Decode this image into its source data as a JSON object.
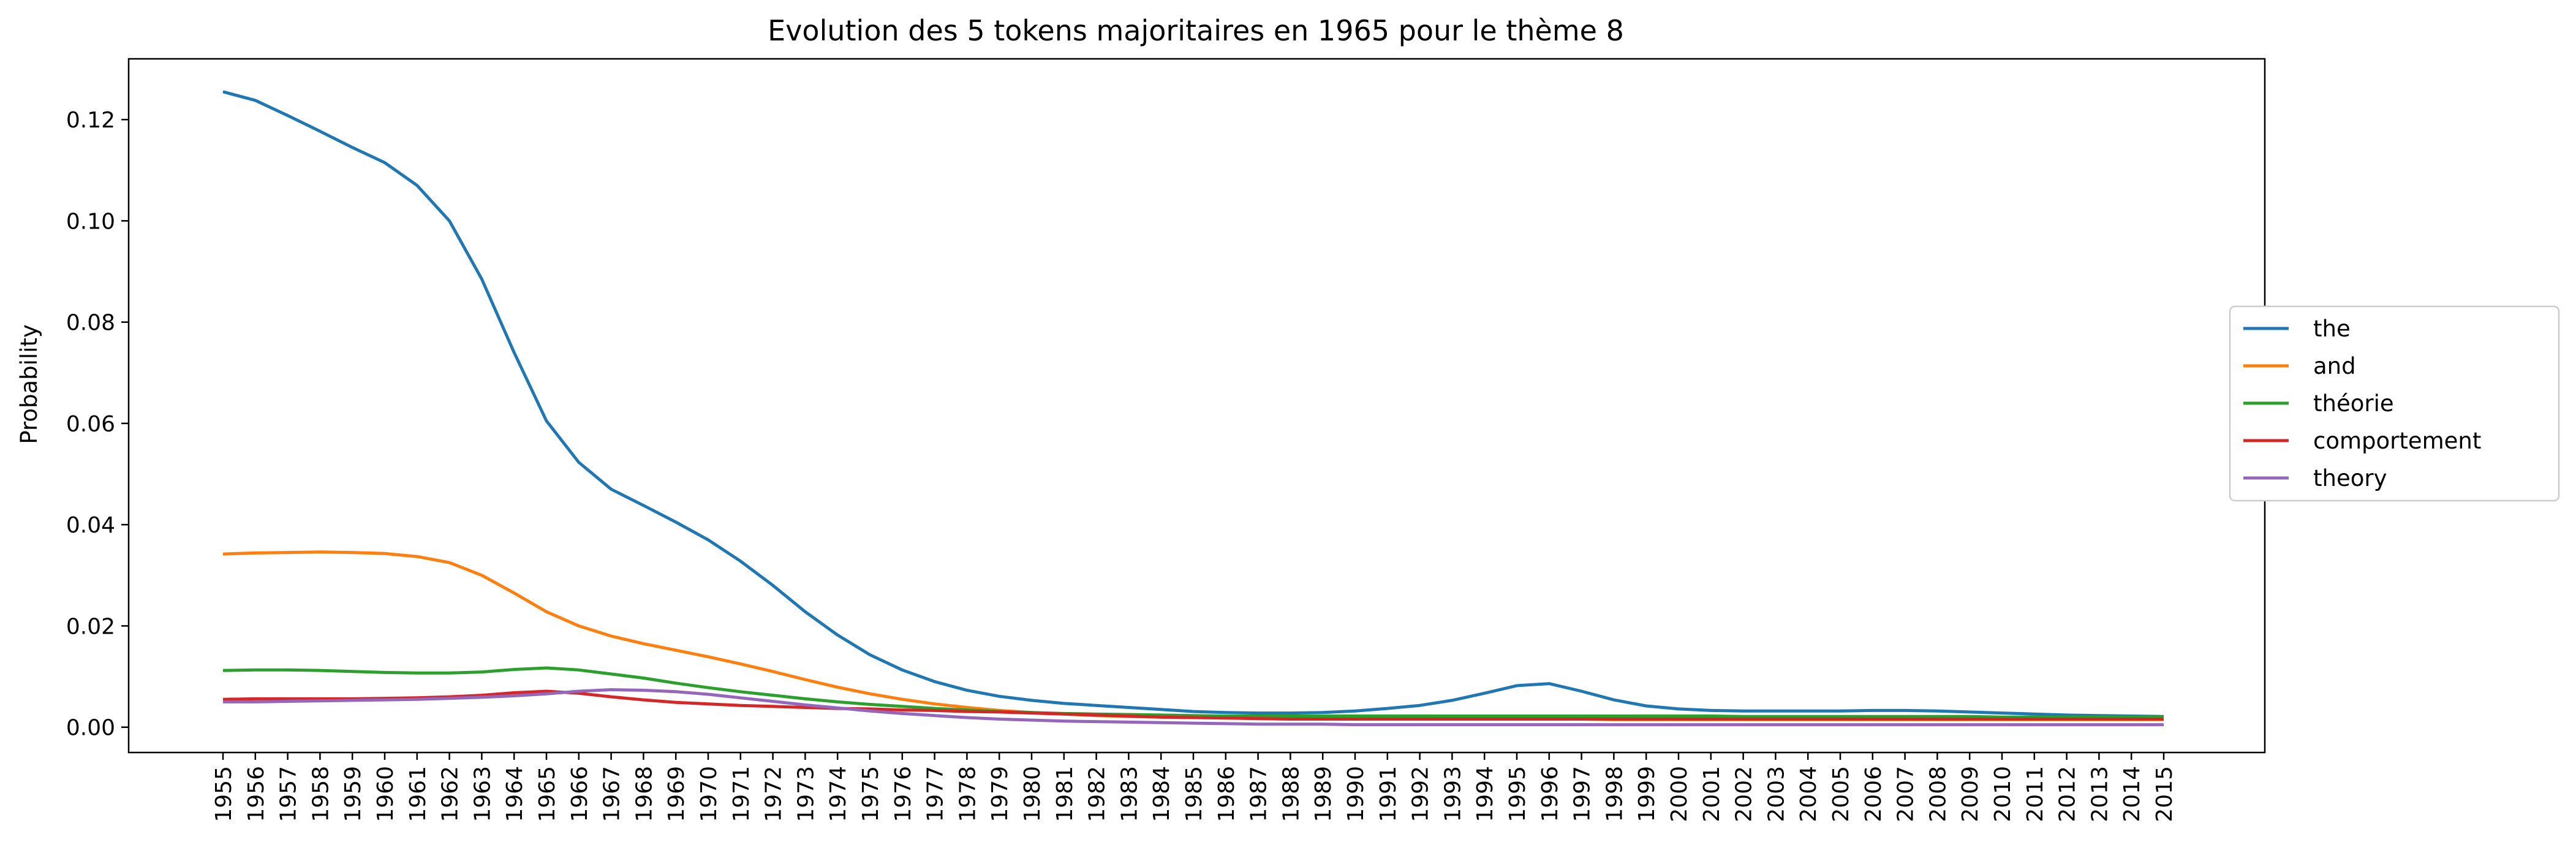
{
  "chart_data": {
    "type": "line",
    "title": "Evolution des 5 tokens majoritaires en 1965 pour le thème 8",
    "xlabel": "",
    "ylabel": "Probability",
    "ylim": [
      -0.005,
      0.132
    ],
    "yticks": [
      0.0,
      0.02,
      0.04,
      0.06,
      0.08,
      0.1,
      0.12
    ],
    "ytick_labels": [
      "0.00",
      "0.02",
      "0.04",
      "0.06",
      "0.08",
      "0.10",
      "0.12"
    ],
    "x": [
      1955,
      1956,
      1957,
      1958,
      1959,
      1960,
      1961,
      1962,
      1963,
      1964,
      1965,
      1966,
      1967,
      1968,
      1969,
      1970,
      1971,
      1972,
      1973,
      1974,
      1975,
      1976,
      1977,
      1978,
      1979,
      1980,
      1981,
      1982,
      1983,
      1984,
      1985,
      1986,
      1987,
      1988,
      1989,
      1990,
      1991,
      1992,
      1993,
      1994,
      1995,
      1996,
      1997,
      1998,
      1999,
      2000,
      2001,
      2002,
      2003,
      2004,
      2005,
      2006,
      2007,
      2008,
      2009,
      2010,
      2011,
      2012,
      2013,
      2014,
      2015
    ],
    "x_labels": [
      "1955",
      "1956",
      "1957",
      "1958",
      "1959",
      "1960",
      "1961",
      "1962",
      "1963",
      "1964",
      "1965",
      "1966",
      "1967",
      "1968",
      "1969",
      "1970",
      "1971",
      "1972",
      "1973",
      "1974",
      "1975",
      "1976",
      "1977",
      "1978",
      "1979",
      "1980",
      "1981",
      "1982",
      "1983",
      "1984",
      "1985",
      "1986",
      "1987",
      "1988",
      "1989",
      "1990",
      "1991",
      "1992",
      "1993",
      "1994",
      "1995",
      "1996",
      "1997",
      "1998",
      "1999",
      "2000",
      "2001",
      "2002",
      "2003",
      "2004",
      "2005",
      "2006",
      "2007",
      "2008",
      "2009",
      "2010",
      "2011",
      "2012",
      "2013",
      "2014",
      "2015"
    ],
    "grid": false,
    "legend_position": "outside-right",
    "series": [
      {
        "name": "the",
        "color": "#1f77b4",
        "values": [
          0.1255,
          0.1238,
          0.1208,
          0.1177,
          0.1145,
          0.1115,
          0.107,
          0.1,
          0.0885,
          0.074,
          0.0605,
          0.0523,
          0.047,
          0.0438,
          0.0405,
          0.037,
          0.0328,
          0.028,
          0.0228,
          0.0182,
          0.0143,
          0.0113,
          0.009,
          0.0073,
          0.0061,
          0.0053,
          0.0047,
          0.0043,
          0.0039,
          0.0035,
          0.0031,
          0.0029,
          0.0028,
          0.0028,
          0.0029,
          0.0032,
          0.0037,
          0.0043,
          0.0053,
          0.0067,
          0.0082,
          0.0086,
          0.0071,
          0.0054,
          0.0042,
          0.0036,
          0.0033,
          0.0032,
          0.0032,
          0.0032,
          0.0032,
          0.0033,
          0.0033,
          0.0032,
          0.003,
          0.0028,
          0.0026,
          0.0024,
          0.0023,
          0.0022,
          0.0021
        ]
      },
      {
        "name": "and",
        "color": "#ff7f0e",
        "values": [
          0.0342,
          0.0344,
          0.0345,
          0.0346,
          0.0345,
          0.0343,
          0.0337,
          0.0325,
          0.03,
          0.0265,
          0.0228,
          0.02,
          0.018,
          0.0165,
          0.0152,
          0.0139,
          0.0125,
          0.011,
          0.0094,
          0.0079,
          0.0066,
          0.0055,
          0.0046,
          0.0039,
          0.0033,
          0.0029,
          0.0026,
          0.0023,
          0.0021,
          0.002,
          0.0019,
          0.0018,
          0.0017,
          0.0016,
          0.0016,
          0.0016,
          0.0016,
          0.0016,
          0.0016,
          0.0016,
          0.0016,
          0.0016,
          0.0016,
          0.0015,
          0.0015,
          0.0015,
          0.0015,
          0.0015,
          0.0015,
          0.0015,
          0.0015,
          0.0015,
          0.0015,
          0.0015,
          0.0015,
          0.0015,
          0.0015,
          0.0015,
          0.0015,
          0.0015,
          0.0015
        ]
      },
      {
        "name": "théorie",
        "color": "#2ca02c",
        "values": [
          0.0112,
          0.0113,
          0.0113,
          0.0112,
          0.011,
          0.0108,
          0.0107,
          0.0107,
          0.0109,
          0.0114,
          0.0117,
          0.0113,
          0.0105,
          0.0097,
          0.0087,
          0.0078,
          0.007,
          0.0063,
          0.0056,
          0.005,
          0.0045,
          0.0041,
          0.0037,
          0.0034,
          0.0031,
          0.0029,
          0.0027,
          0.0026,
          0.0025,
          0.0024,
          0.0023,
          0.0022,
          0.0022,
          0.0022,
          0.0022,
          0.0022,
          0.0022,
          0.0022,
          0.0022,
          0.0022,
          0.0022,
          0.0022,
          0.0022,
          0.0022,
          0.0022,
          0.0022,
          0.0022,
          0.0021,
          0.0021,
          0.0021,
          0.0021,
          0.0021,
          0.0021,
          0.0021,
          0.0021,
          0.002,
          0.002,
          0.002,
          0.002,
          0.002,
          0.002
        ]
      },
      {
        "name": "comportement",
        "color": "#d62728",
        "values": [
          0.0055,
          0.0056,
          0.0056,
          0.0056,
          0.0056,
          0.0057,
          0.0058,
          0.006,
          0.0063,
          0.0068,
          0.0071,
          0.0067,
          0.006,
          0.0054,
          0.0049,
          0.0046,
          0.0043,
          0.0041,
          0.0039,
          0.0037,
          0.0036,
          0.0034,
          0.0033,
          0.0031,
          0.003,
          0.0028,
          0.0026,
          0.0024,
          0.0022,
          0.002,
          0.0019,
          0.0018,
          0.0017,
          0.0016,
          0.0016,
          0.0016,
          0.0016,
          0.0016,
          0.0016,
          0.0016,
          0.0016,
          0.0016,
          0.0016,
          0.0016,
          0.0016,
          0.0016,
          0.0016,
          0.0016,
          0.0016,
          0.0016,
          0.0016,
          0.0016,
          0.0016,
          0.0016,
          0.0016,
          0.0016,
          0.0016,
          0.0016,
          0.0016,
          0.0016,
          0.0016
        ]
      },
      {
        "name": "theory",
        "color": "#9467bd",
        "values": [
          0.005,
          0.005,
          0.0051,
          0.0052,
          0.0053,
          0.0054,
          0.0055,
          0.0057,
          0.0059,
          0.0062,
          0.0066,
          0.0071,
          0.0074,
          0.0073,
          0.007,
          0.0065,
          0.0058,
          0.0051,
          0.0044,
          0.0038,
          0.0032,
          0.0027,
          0.0023,
          0.0019,
          0.0016,
          0.0014,
          0.0012,
          0.0011,
          0.001,
          0.0009,
          0.0008,
          0.0007,
          0.0006,
          0.0006,
          0.0006,
          0.0005,
          0.0005,
          0.0005,
          0.0005,
          0.0005,
          0.0005,
          0.0005,
          0.0005,
          0.0005,
          0.0005,
          0.0005,
          0.0005,
          0.0005,
          0.0005,
          0.0005,
          0.0005,
          0.0005,
          0.0005,
          0.0005,
          0.0005,
          0.0005,
          0.0005,
          0.0005,
          0.0005,
          0.0005,
          0.0005
        ]
      }
    ]
  }
}
